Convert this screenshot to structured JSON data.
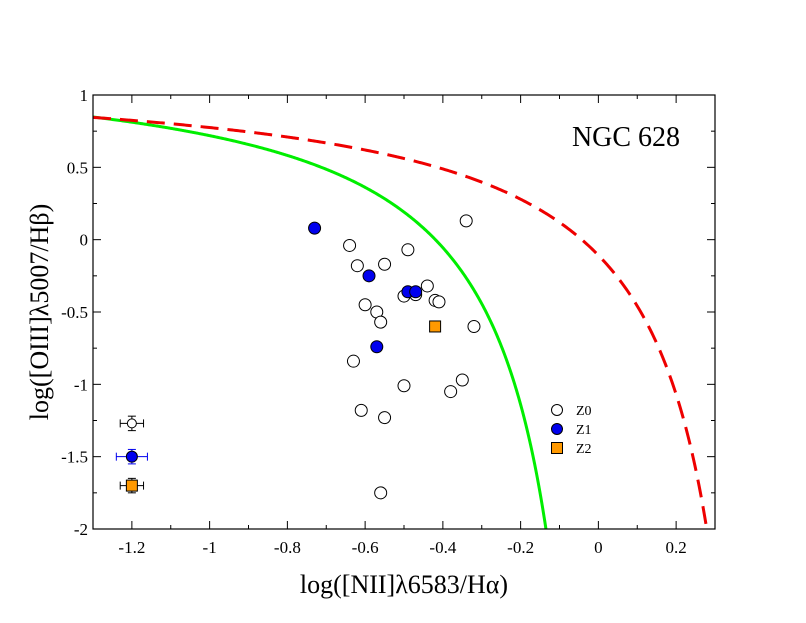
{
  "chart_data": {
    "type": "scatter",
    "title": "NGC 628",
    "xlabel": "log([NII]λ6583/Hα)",
    "ylabel": "log([OIII]λ5007/Hβ)",
    "xlim": [
      -1.3,
      0.3
    ],
    "ylim": [
      -2,
      1
    ],
    "x_ticks": [
      -1.2,
      -1,
      -0.8,
      -0.6,
      -0.4,
      -0.2,
      0,
      0.2
    ],
    "x_tick_labels": [
      "-1.2",
      "-1",
      "-0.8",
      "-0.6",
      "-0.4",
      "-0.2",
      "0",
      "0.2"
    ],
    "y_ticks": [
      -2,
      -1.5,
      -1,
      -0.5,
      0,
      0.5,
      1
    ],
    "y_tick_labels": [
      "-2",
      "-1.5",
      "-1",
      "-0.5",
      "0",
      "0.5",
      "1"
    ],
    "grid": false,
    "legend_position": "lower-right",
    "series": [
      {
        "name": "Z0",
        "marker": "open-circle",
        "color": "#000000",
        "points": [
          [
            -0.34,
            0.13
          ],
          [
            -0.64,
            -0.04
          ],
          [
            -0.49,
            -0.07
          ],
          [
            -0.62,
            -0.18
          ],
          [
            -0.55,
            -0.17
          ],
          [
            -0.44,
            -0.32
          ],
          [
            -0.5,
            -0.39
          ],
          [
            -0.47,
            -0.38
          ],
          [
            -0.42,
            -0.42
          ],
          [
            -0.41,
            -0.43
          ],
          [
            -0.6,
            -0.45
          ],
          [
            -0.57,
            -0.5
          ],
          [
            -0.56,
            -0.57
          ],
          [
            -0.32,
            -0.6
          ],
          [
            -0.63,
            -0.84
          ],
          [
            -0.35,
            -0.97
          ],
          [
            -0.5,
            -1.01
          ],
          [
            -0.38,
            -1.05
          ],
          [
            -0.61,
            -1.18
          ],
          [
            -0.55,
            -1.23
          ],
          [
            -0.56,
            -1.75
          ]
        ]
      },
      {
        "name": "Z1",
        "marker": "filled-circle",
        "color": "#0000ee",
        "points": [
          [
            -0.73,
            0.08
          ],
          [
            -0.59,
            -0.25
          ],
          [
            -0.49,
            -0.36
          ],
          [
            -0.47,
            -0.36
          ],
          [
            -0.57,
            -0.74
          ]
        ]
      },
      {
        "name": "Z2",
        "marker": "filled-square",
        "color": "#ff9900",
        "points": [
          [
            -0.42,
            -0.6
          ]
        ]
      }
    ],
    "error_bars": [
      {
        "series": "Z0",
        "x": -1.2,
        "y": -1.27,
        "xerr": 0.03,
        "yerr": 0.05
      },
      {
        "series": "Z1",
        "x": -1.2,
        "y": -1.5,
        "xerr": 0.04,
        "yerr": 0.05
      },
      {
        "series": "Z2",
        "x": -1.2,
        "y": -1.7,
        "xerr": 0.03,
        "yerr": 0.05
      }
    ],
    "curves": [
      {
        "name": "green-solid",
        "color": "#00ee00",
        "style": "solid",
        "formula": "0.61/(x-0.05)+1.3"
      },
      {
        "name": "red-dashed",
        "color": "#ee0000",
        "style": "dashed",
        "formula": "0.61/(x-0.47)+1.19"
      }
    ]
  }
}
